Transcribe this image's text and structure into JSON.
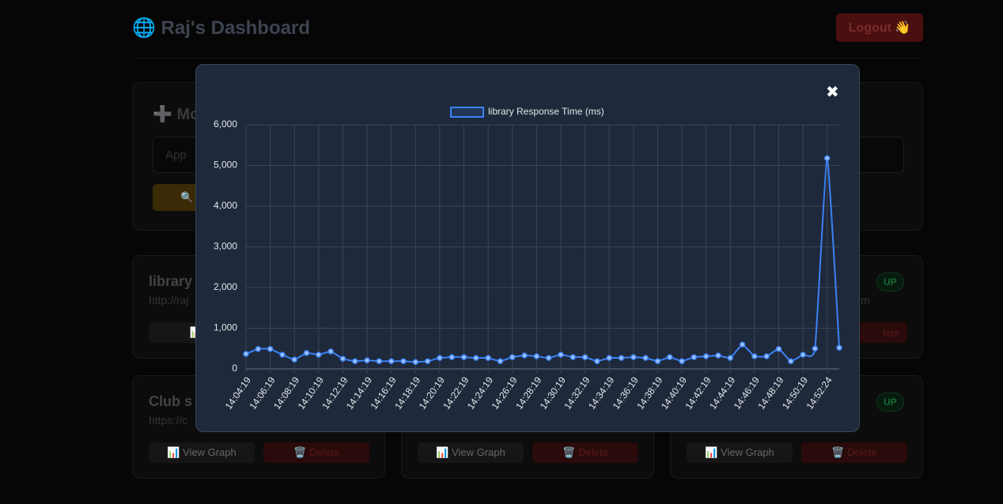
{
  "header": {
    "title": "🌐 Raj's Dashboard",
    "logout": "Logout 👋"
  },
  "form": {
    "title": "➕ Mo",
    "placeholder": "App",
    "button": "🔍 C"
  },
  "cards": [
    {
      "name": "library",
      "url": "http://raj",
      "graph": "📊 Vi"
    },
    {
      "status": "UP",
      "url": "m",
      "delete": "lete"
    },
    {
      "name": "Club s",
      "url": "https://c",
      "graph": "📊 View Graph",
      "delete": "🗑️ Delete"
    },
    {
      "graph": "📊 View Graph",
      "delete": "🗑️ Delete"
    },
    {
      "status": "UP",
      "graph": "📊 View Graph",
      "delete": "🗑️ Delete"
    }
  ],
  "modal": {
    "close": "✖"
  },
  "chart_data": {
    "type": "line",
    "categories": [
      "14:04:19",
      null,
      "14:06:19",
      null,
      "14:08:19",
      null,
      "14:10:19",
      null,
      "14:12:19",
      null,
      "14:14:19",
      null,
      "14:16:19",
      null,
      "14:18:19",
      null,
      "14:20:19",
      null,
      "14:22:19",
      null,
      "14:24:19",
      null,
      "14:26:19",
      null,
      "14:28:19",
      null,
      "14:30:19",
      null,
      "14:32:19",
      null,
      "14:34:19",
      null,
      "14:36:19",
      null,
      "14:38:19",
      null,
      "14:40:19",
      null,
      "14:42:19",
      null,
      "14:44:19",
      null,
      "14:46:19",
      null,
      "14:48:19",
      null,
      "14:50:19",
      null,
      "14:52:24",
      null
    ],
    "series": [
      {
        "name": "library Response Time (ms)",
        "color": "#3b82f6",
        "values": [
          370,
          490,
          490,
          350,
          230,
          390,
          350,
          430,
          250,
          190,
          210,
          190,
          190,
          190,
          170,
          190,
          270,
          290,
          290,
          270,
          270,
          190,
          290,
          330,
          310,
          270,
          350,
          290,
          290,
          190,
          270,
          270,
          290,
          270,
          190,
          290,
          190,
          290,
          310,
          330,
          270,
          600,
          310,
          310,
          490,
          190,
          350,
          500,
          5180,
          520
        ]
      }
    ],
    "ylim": [
      0,
      6000
    ],
    "yticks": [
      0,
      {
        "value": 1000,
        "label": "1,000"
      },
      {
        "value": 2000,
        "label": "2,000"
      },
      {
        "value": 3000,
        "label": "3,000"
      },
      {
        "value": 4000,
        "label": "4,000"
      },
      {
        "value": 5000,
        "label": "5,000"
      },
      {
        "value": 6000,
        "label": "6,000"
      }
    ],
    "grid": true,
    "legend": "top"
  }
}
